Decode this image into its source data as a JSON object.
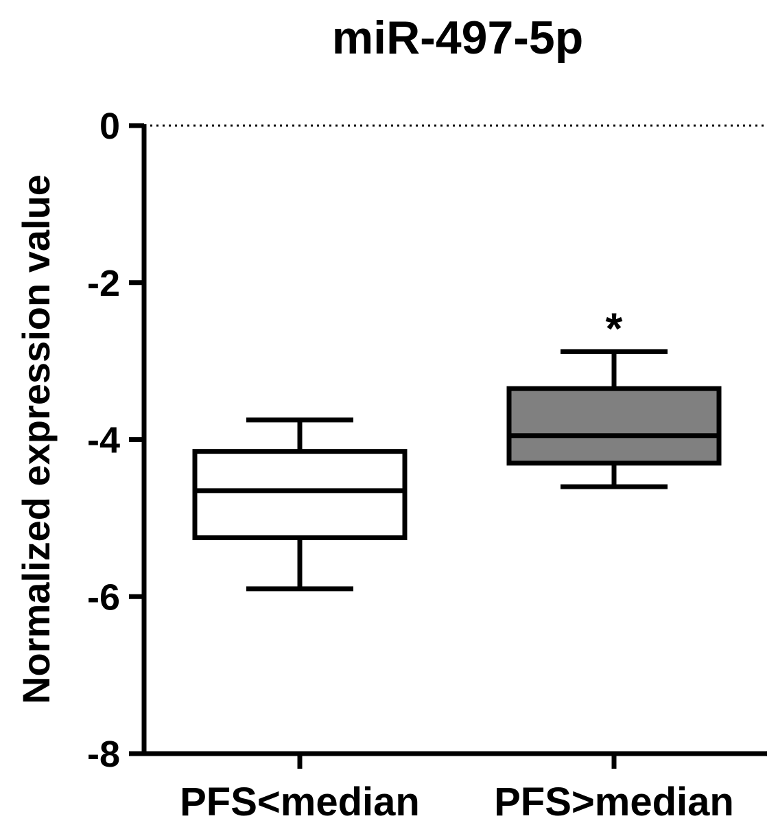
{
  "chart_data": {
    "type": "box",
    "title": "miR-497-5p",
    "xlabel": "",
    "ylabel": "Normalized expression value",
    "ylim": [
      -8,
      0
    ],
    "yticks": [
      0,
      -2,
      -4,
      -6,
      -8
    ],
    "ytick_labels": [
      "0",
      "-2",
      "-4",
      "-6",
      "-8"
    ],
    "categories": [
      "PFS<median",
      "PFS>median"
    ],
    "reference_line": {
      "y": 0,
      "style": "dotted"
    },
    "grid": false,
    "legend": "none",
    "series": [
      {
        "category": "PFS<median",
        "whisker_low": -5.9,
        "q1": -5.25,
        "median": -4.65,
        "q3": -4.15,
        "whisker_high": -3.75,
        "fill": "#ffffff"
      },
      {
        "category": "PFS>median",
        "whisker_low": -4.6,
        "q1": -4.3,
        "median": -3.95,
        "q3": -3.35,
        "whisker_high": -2.88,
        "fill": "#808080",
        "annotation": "*"
      }
    ]
  }
}
